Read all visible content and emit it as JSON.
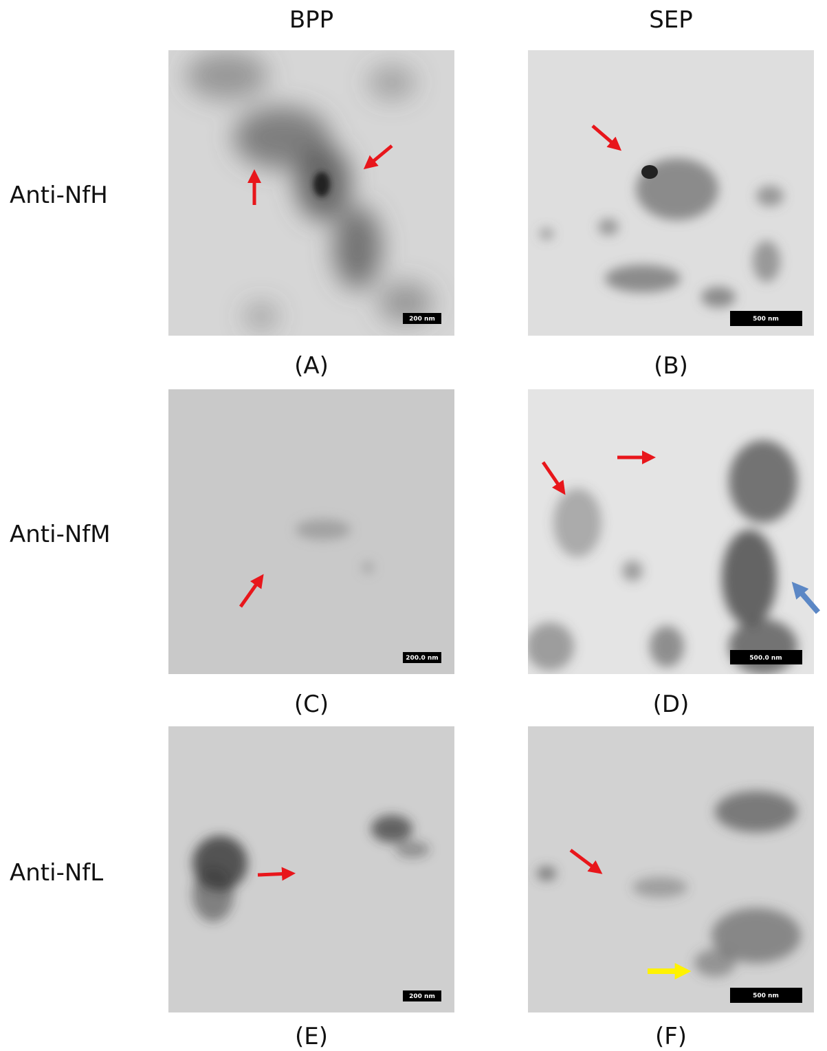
{
  "columns": [
    "BPP",
    "SEP"
  ],
  "rows": [
    "Anti-NfH",
    "Anti-NfM",
    "Anti-NfL"
  ],
  "panels": [
    {
      "label": "(A)",
      "scale_bar": "200 nm"
    },
    {
      "label": "(B)",
      "scale_bar": "500 nm"
    },
    {
      "label": "(C)",
      "scale_bar": "200.0 nm"
    },
    {
      "label": "(D)",
      "scale_bar": "500.0 nm"
    },
    {
      "label": "(E)",
      "scale_bar": "200 nm"
    },
    {
      "label": "(F)",
      "scale_bar": "500 nm"
    }
  ]
}
